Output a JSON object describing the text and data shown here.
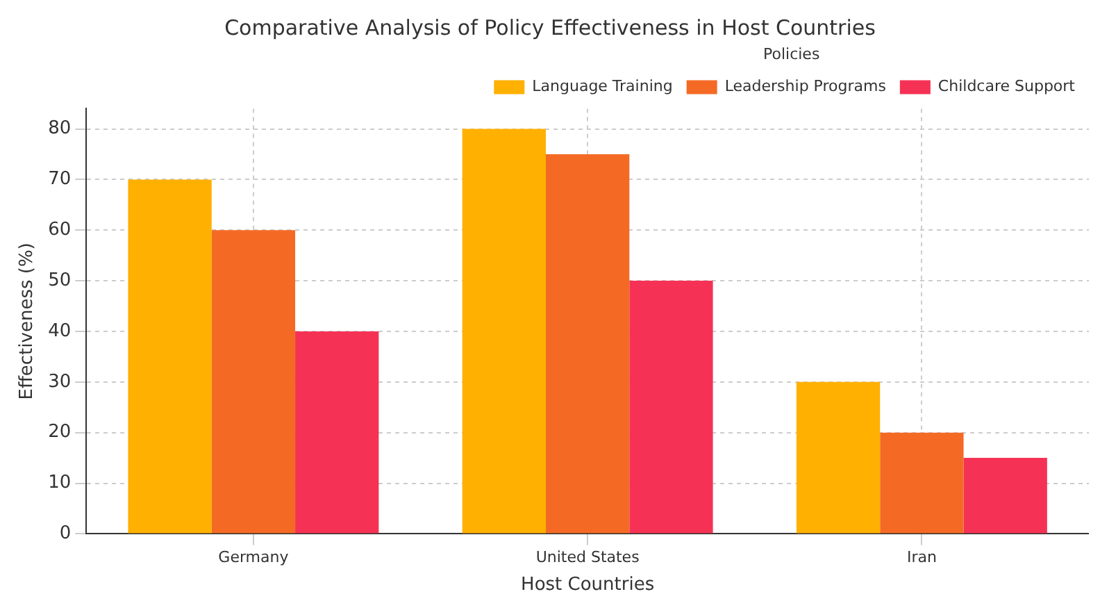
{
  "chart_data": {
    "type": "bar",
    "title": "Comparative Analysis of Policy Effectiveness in Host Countries",
    "xlabel": "Host Countries",
    "ylabel": "Effectiveness (%)",
    "legend_title": "Policies",
    "categories": [
      "Germany",
      "United States",
      "Iran"
    ],
    "series": [
      {
        "name": "Language Training",
        "color": "#ffb000",
        "values": [
          70,
          80,
          30
        ]
      },
      {
        "name": "Leadership Programs",
        "color": "#f46a25",
        "values": [
          60,
          75,
          20
        ]
      },
      {
        "name": "Childcare Support",
        "color": "#f53255",
        "values": [
          40,
          50,
          15
        ]
      }
    ],
    "ylim": [
      0,
      84
    ],
    "yticks": [
      0,
      10,
      20,
      30,
      40,
      50,
      60,
      70,
      80
    ],
    "grid": true,
    "legend": "top right"
  }
}
